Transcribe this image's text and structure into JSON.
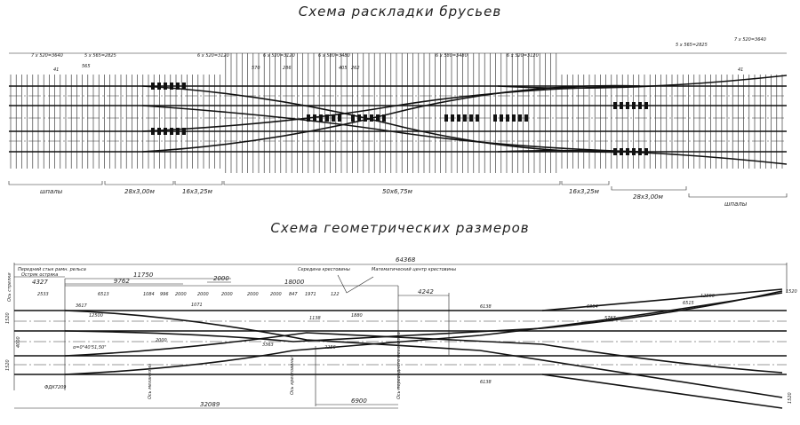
{
  "titles": {
    "ties_scheme": "Схема раскладки брусьев",
    "geometry_scheme": "Схема геометрических размеров"
  },
  "ties_scheme": {
    "top_dims": [
      "7 x 520=3640",
      "5 x 565=2825",
      "6 x 520=3120",
      "6 x 520=3120",
      "6 x 580=3480",
      "6 x 580=3480",
      "6 x 520=3120",
      "5 x 565=2825",
      "7 x 520=3640"
    ],
    "small_dims": [
      "41",
      "565",
      "520",
      "570",
      "286",
      "405",
      "262",
      "41"
    ],
    "groups": [
      "шпалы",
      "28x3,00м",
      "16x3,25м",
      "50x6,75м",
      "16x3,25м",
      "28x3,00м",
      "шпалы"
    ]
  },
  "geometry_scheme": {
    "total_length": "64368",
    "upper_dims": [
      "4327",
      "11750",
      "9762",
      "2000",
      "18000",
      "4242"
    ],
    "row_dims": [
      "2533",
      "6513",
      "1084",
      "996",
      "2000",
      "2000",
      "2000",
      "2000",
      "2000",
      "847",
      "1971",
      "122"
    ],
    "notes": [
      "Передний стык рамн. рельса",
      "Остряк остряка",
      "Середина крестовины",
      "Математический центр крестовины",
      "Ось стрелки",
      "Ось переводного механизма"
    ],
    "inner_dims": [
      "3617",
      "12500",
      "1071",
      "1138",
      "1880",
      "6138",
      "6884",
      "6515",
      "12500",
      "5767",
      "2000",
      "2256",
      "3363",
      "6138"
    ],
    "angle": "α=0°40'51,50\"",
    "section_labels": [
      "ФДК7209",
      "Ось механизма",
      "Ось крестовины"
    ],
    "bottom_dims": [
      "32089",
      "6900"
    ],
    "side_dims": [
      "1520",
      "4000",
      "1520",
      "1520",
      "1520"
    ]
  }
}
